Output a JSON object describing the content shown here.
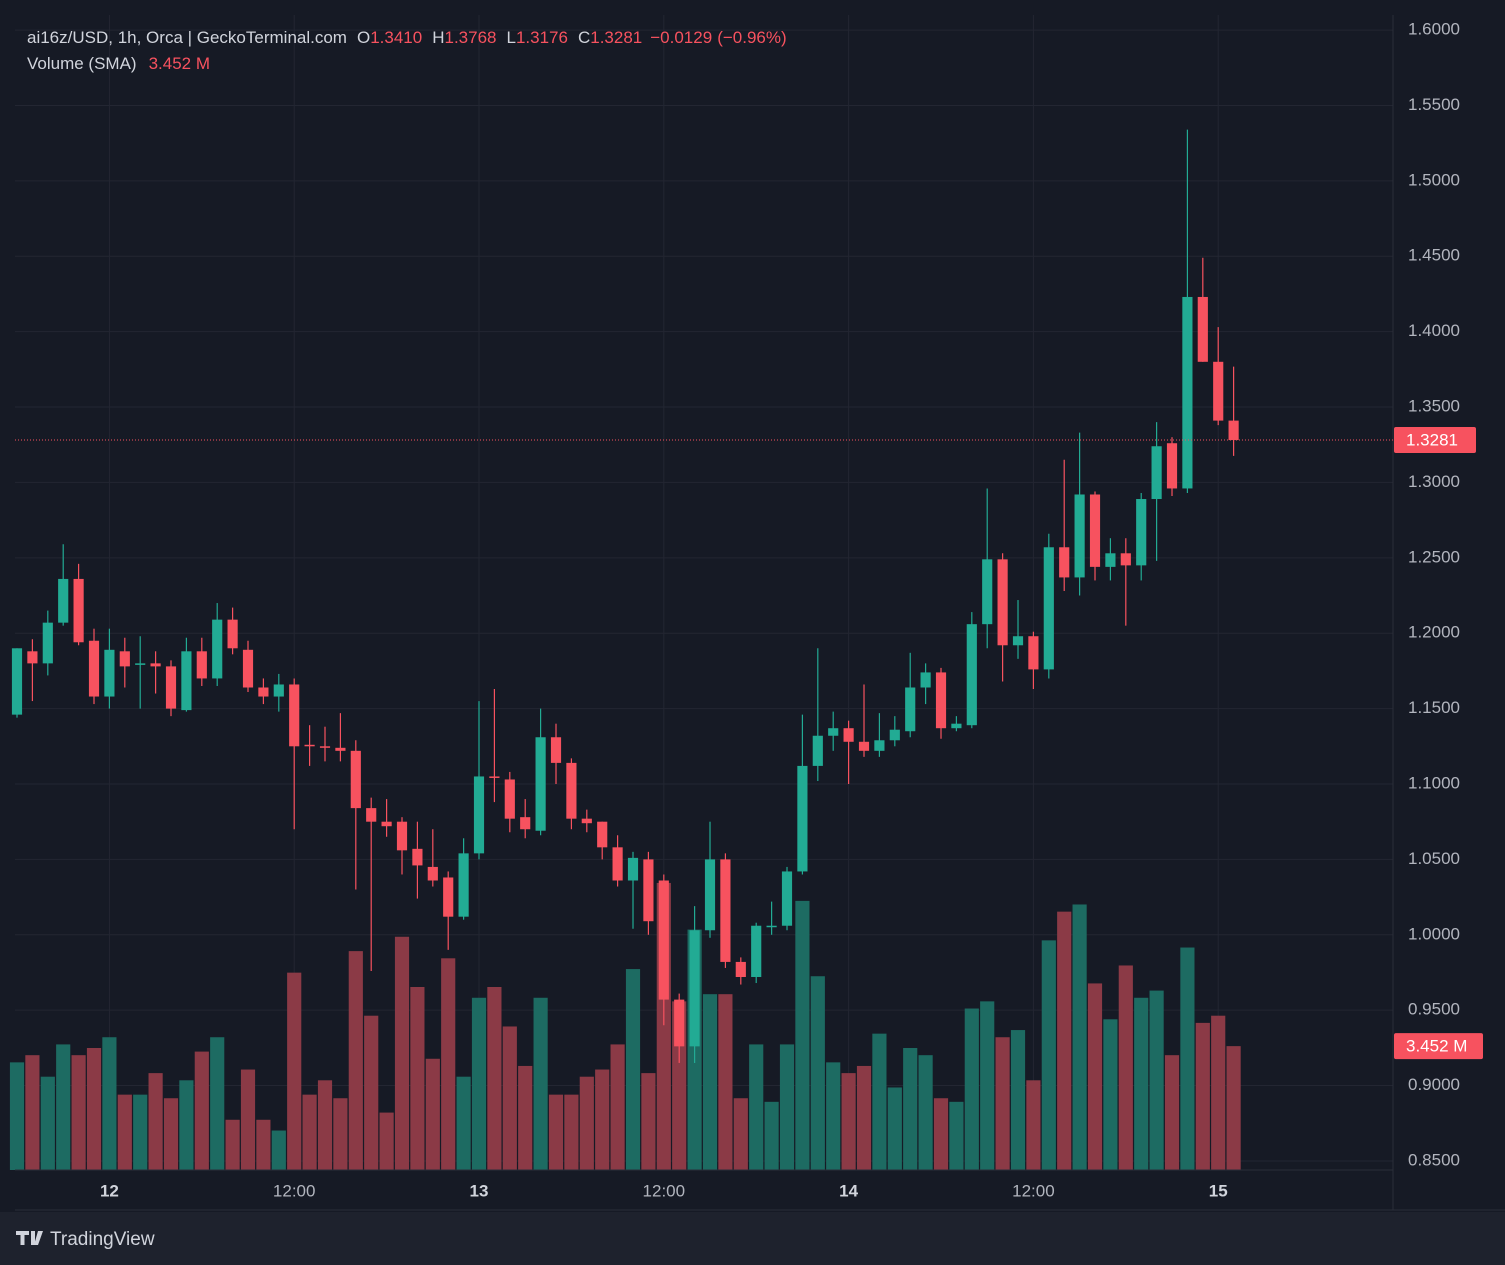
{
  "chart_data": {
    "type": "candlestick",
    "title": "ai16z/USD, 1h, Orca | GeckoTerminal.com",
    "header": [
      {
        "key": "O",
        "value": 1.341,
        "label": "1.3410"
      },
      {
        "key": "H",
        "value": 1.3768,
        "label": "1.3768"
      },
      {
        "key": "L",
        "value": 1.3176,
        "label": "1.3176"
      },
      {
        "key": "C",
        "value": 1.3281,
        "label": "1.3281"
      }
    ],
    "change": {
      "value": -0.0129,
      "label": "−0.0129"
    },
    "change_pct": {
      "value": -0.96,
      "label": "(−0.96%)"
    },
    "up_color": "#22ab94",
    "down_color": "#f7525f",
    "open": [
      1.146,
      1.188,
      1.18,
      1.207,
      1.236,
      1.195,
      1.158,
      1.188,
      1.179,
      1.18,
      1.178,
      1.149,
      1.188,
      1.17,
      1.209,
      1.189,
      1.164,
      1.158,
      1.166,
      1.126,
      1.125,
      1.124,
      1.122,
      1.084,
      1.075,
      1.075,
      1.057,
      1.045,
      1.038,
      1.012,
      1.054,
      1.105,
      1.103,
      1.078,
      1.069,
      1.131,
      1.114,
      1.077,
      1.075,
      1.058,
      1.036,
      1.05,
      1.036,
      0.957,
      0.926,
      1.003,
      1.05,
      0.982,
      0.972,
      1.005,
      1.006,
      1.042,
      1.112,
      1.132,
      1.137,
      1.128,
      1.122,
      1.129,
      1.135,
      1.164,
      1.174,
      1.137,
      1.139,
      1.206,
      1.249,
      1.192,
      1.198,
      1.176,
      1.257,
      1.237,
      1.292,
      1.244,
      1.253,
      1.245,
      1.289,
      1.326,
      1.296,
      1.423,
      1.38,
      1.341
    ],
    "high": [
      1.19,
      1.196,
      1.215,
      1.259,
      1.246,
      1.203,
      1.203,
      1.197,
      1.198,
      1.188,
      1.182,
      1.197,
      1.197,
      1.22,
      1.217,
      1.195,
      1.17,
      1.173,
      1.17,
      1.139,
      1.138,
      1.147,
      1.129,
      1.091,
      1.09,
      1.078,
      1.075,
      1.07,
      1.042,
      1.064,
      1.155,
      1.163,
      1.108,
      1.09,
      1.15,
      1.14,
      1.117,
      1.083,
      1.075,
      1.066,
      1.055,
      1.055,
      1.04,
      0.961,
      1.019,
      1.075,
      1.054,
      0.985,
      1.008,
      1.022,
      1.045,
      1.146,
      1.19,
      1.148,
      1.142,
      1.166,
      1.147,
      1.145,
      1.187,
      1.18,
      1.177,
      1.145,
      1.214,
      1.296,
      1.253,
      1.222,
      1.201,
      1.266,
      1.315,
      1.333,
      1.294,
      1.263,
      1.263,
      1.293,
      1.34,
      1.33,
      1.534,
      1.449,
      1.403,
      1.3768
    ],
    "low": [
      1.144,
      1.155,
      1.172,
      1.205,
      1.192,
      1.153,
      1.15,
      1.164,
      1.15,
      1.16,
      1.145,
      1.148,
      1.165,
      1.165,
      1.186,
      1.161,
      1.153,
      1.148,
      1.07,
      1.112,
      1.115,
      1.115,
      1.03,
      0.976,
      1.065,
      1.04,
      1.024,
      1.032,
      0.99,
      1.01,
      1.05,
      1.088,
      1.068,
      1.064,
      1.066,
      1.1,
      1.07,
      1.068,
      1.05,
      1.032,
      1.004,
      1.0,
      0.94,
      0.915,
      0.915,
      0.998,
      0.978,
      0.967,
      0.968,
      1.0,
      1.003,
      1.04,
      1.102,
      1.122,
      1.1,
      1.118,
      1.118,
      1.125,
      1.131,
      1.153,
      1.13,
      1.135,
      1.137,
      1.19,
      1.168,
      1.183,
      1.163,
      1.17,
      1.228,
      1.225,
      1.235,
      1.235,
      1.205,
      1.235,
      1.248,
      1.291,
      1.293,
      1.38,
      1.338,
      1.3176
    ],
    "close": [
      1.19,
      1.18,
      1.207,
      1.236,
      1.194,
      1.158,
      1.189,
      1.178,
      1.18,
      1.178,
      1.15,
      1.188,
      1.17,
      1.209,
      1.19,
      1.164,
      1.158,
      1.166,
      1.125,
      1.125,
      1.124,
      1.122,
      1.084,
      1.075,
      1.072,
      1.056,
      1.046,
      1.036,
      1.012,
      1.054,
      1.105,
      1.104,
      1.077,
      1.07,
      1.131,
      1.114,
      1.077,
      1.074,
      1.058,
      1.036,
      1.051,
      1.009,
      0.957,
      0.926,
      1.003,
      1.05,
      0.982,
      0.972,
      1.006,
      1.006,
      1.042,
      1.112,
      1.132,
      1.137,
      1.128,
      1.122,
      1.129,
      1.136,
      1.164,
      1.174,
      1.137,
      1.14,
      1.206,
      1.249,
      1.192,
      1.198,
      1.176,
      1.257,
      1.237,
      1.292,
      1.244,
      1.253,
      1.245,
      1.289,
      1.324,
      1.296,
      1.423,
      1.38,
      1.341,
      1.3281
    ],
    "volume": {
      "label": "Volume (SMA)",
      "values": [
        3.0,
        3.2,
        2.6,
        3.5,
        3.2,
        3.4,
        3.7,
        2.1,
        2.1,
        2.7,
        2.0,
        2.5,
        3.3,
        3.7,
        1.4,
        2.8,
        1.4,
        1.1,
        5.5,
        2.1,
        2.5,
        2.0,
        6.1,
        4.3,
        1.6,
        6.5,
        5.1,
        3.1,
        5.9,
        2.6,
        4.8,
        5.1,
        4.0,
        2.9,
        4.8,
        2.1,
        2.1,
        2.6,
        2.8,
        3.5,
        5.6,
        2.7,
        8.0,
        4.7,
        6.7,
        4.9,
        4.9,
        2.0,
        3.5,
        1.9,
        3.5,
        7.5,
        5.4,
        3.0,
        2.7,
        2.9,
        3.8,
        2.3,
        3.4,
        3.2,
        2.0,
        1.9,
        4.5,
        4.7,
        3.7,
        3.9,
        2.5,
        6.4,
        7.2,
        7.4,
        5.2,
        4.2,
        5.7,
        4.8,
        5.0,
        3.2,
        6.2,
        4.1,
        4.3,
        3.452
      ],
      "value_label": "3.452 M",
      "up_color": "#1d6b62",
      "down_color": "#8b3a46",
      "vlim": [
        0,
        8.5
      ]
    },
    "ylim": [
      0.844,
      1.61
    ],
    "yticks": [
      {
        "value": 0.85,
        "label": "0.8500"
      },
      {
        "value": 0.9,
        "label": "0.9000"
      },
      {
        "value": 0.95,
        "label": "0.9500"
      },
      {
        "value": 1.0,
        "label": "1.0000"
      },
      {
        "value": 1.05,
        "label": "1.0500"
      },
      {
        "value": 1.1,
        "label": "1.1000"
      },
      {
        "value": 1.15,
        "label": "1.1500"
      },
      {
        "value": 1.2,
        "label": "1.2000"
      },
      {
        "value": 1.25,
        "label": "1.2500"
      },
      {
        "value": 1.3,
        "label": "1.3000"
      },
      {
        "value": 1.35,
        "label": "1.3500"
      },
      {
        "value": 1.4,
        "label": "1.4000"
      },
      {
        "value": 1.45,
        "label": "1.4500"
      },
      {
        "value": 1.5,
        "label": "1.5000"
      },
      {
        "value": 1.55,
        "label": "1.5500"
      },
      {
        "value": 1.6,
        "label": "1.6000"
      }
    ],
    "xlim": [
      -0.13,
      89.35
    ],
    "xticks": [
      {
        "value": 6,
        "label": "12"
      },
      {
        "value": 18,
        "label": "12:00"
      },
      {
        "value": 30,
        "label": "13"
      },
      {
        "value": 42,
        "label": "12:00"
      },
      {
        "value": 54,
        "label": "14"
      },
      {
        "value": 66,
        "label": "12:00"
      },
      {
        "value": 78,
        "label": "15"
      }
    ],
    "grid": true,
    "brand": "TradingView"
  }
}
